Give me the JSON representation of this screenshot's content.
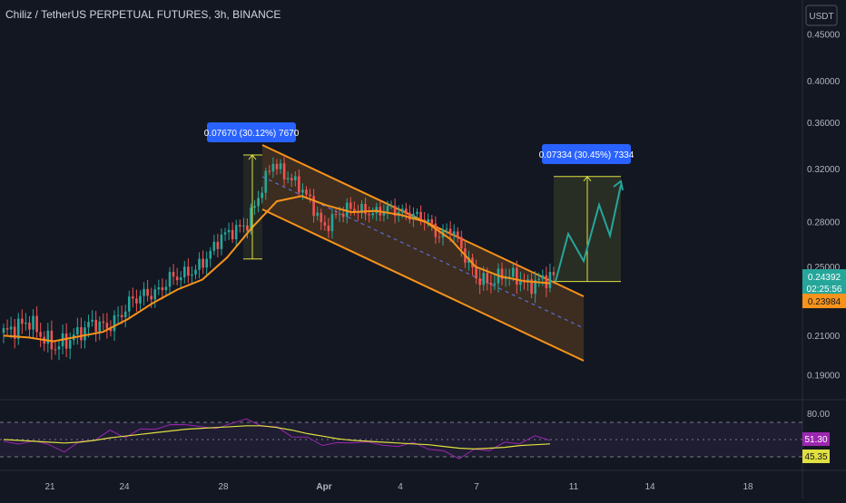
{
  "header": {
    "title": "Chiliz / TetherUS PERPETUAL FUTURES, 3h, BINANCE",
    "currency": "USDT"
  },
  "chart_data": {
    "type": "candlestick",
    "price_axis": {
      "ticks": [
        "0.45000",
        "0.40000",
        "0.36000",
        "0.32000",
        "0.28000",
        "0.25000",
        "0.21000",
        "0.19000"
      ],
      "tick_values": [
        0.45,
        0.4,
        0.36,
        0.32,
        0.28,
        0.25,
        0.21,
        0.19
      ],
      "scale": "log"
    },
    "time_axis": {
      "ticks": [
        "21",
        "24",
        "28",
        "Apr",
        "4",
        "7",
        "11",
        "14",
        "18"
      ]
    },
    "last_price": {
      "value": 0.24392,
      "label": "0.24392",
      "countdown": "02:25:56",
      "color": "#26a69a"
    },
    "ma_price": {
      "value": 0.23984,
      "label": "0.23984",
      "color": "#f7931a"
    },
    "series": [
      {
        "name": "price",
        "role": "candles",
        "up_color": "#26a69a",
        "down_color": "#ef5350",
        "path": [
          {
            "d": "19",
            "p": 0.2115
          },
          {
            "d": "19.5",
            "p": 0.2145
          },
          {
            "d": "20",
            "p": 0.218
          },
          {
            "d": "20.5",
            "p": 0.2095
          },
          {
            "d": "21",
            "p": 0.204
          },
          {
            "d": "21.5",
            "p": 0.2075
          },
          {
            "d": "22",
            "p": 0.212
          },
          {
            "d": "22.5",
            "p": 0.2175
          },
          {
            "d": "23",
            "p": 0.214
          },
          {
            "d": "23.5",
            "p": 0.22
          },
          {
            "d": "24",
            "p": 0.23
          },
          {
            "d": "24.5",
            "p": 0.233
          },
          {
            "d": "25",
            "p": 0.234
          },
          {
            "d": "25.5",
            "p": 0.243
          },
          {
            "d": "26",
            "p": 0.245
          },
          {
            "d": "26.5",
            "p": 0.248
          },
          {
            "d": "27",
            "p": 0.257
          },
          {
            "d": "27.5",
            "p": 0.27
          },
          {
            "d": "28",
            "p": 0.274
          },
          {
            "d": "28.5",
            "p": 0.278
          },
          {
            "d": "29",
            "p": 0.3
          },
          {
            "d": "29.5",
            "p": 0.326
          },
          {
            "d": "30",
            "p": 0.315
          },
          {
            "d": "30.5",
            "p": 0.308
          },
          {
            "d": "31",
            "p": 0.295
          },
          {
            "d": "31.5",
            "p": 0.275
          },
          {
            "d": "Apr 1",
            "p": 0.285
          },
          {
            "d": "1.5",
            "p": 0.29
          },
          {
            "d": "2",
            "p": 0.288
          },
          {
            "d": "2.5",
            "p": 0.286
          },
          {
            "d": "3",
            "p": 0.29
          },
          {
            "d": "3.5",
            "p": 0.287
          },
          {
            "d": "4",
            "p": 0.285
          },
          {
            "d": "4.5",
            "p": 0.282
          },
          {
            "d": "5",
            "p": 0.27
          },
          {
            "d": "5.5",
            "p": 0.276
          },
          {
            "d": "6",
            "p": 0.258
          },
          {
            "d": "6.5",
            "p": 0.243
          },
          {
            "d": "7",
            "p": 0.24
          },
          {
            "d": "7.5",
            "p": 0.245
          },
          {
            "d": "8",
            "p": 0.244
          },
          {
            "d": "8.5",
            "p": 0.238
          },
          {
            "d": "9",
            "p": 0.242
          },
          {
            "d": "9.5",
            "p": 0.2439
          }
        ]
      },
      {
        "name": "moving_average",
        "role": "line",
        "color": "#f7931a",
        "path": [
          {
            "d": "19",
            "p": 0.21
          },
          {
            "d": "20",
            "p": 0.209
          },
          {
            "d": "21",
            "p": 0.207
          },
          {
            "d": "22",
            "p": 0.2095
          },
          {
            "d": "23",
            "p": 0.212
          },
          {
            "d": "24",
            "p": 0.219
          },
          {
            "d": "25",
            "p": 0.228
          },
          {
            "d": "26",
            "p": 0.236
          },
          {
            "d": "27",
            "p": 0.242
          },
          {
            "d": "28",
            "p": 0.256
          },
          {
            "d": "29",
            "p": 0.276
          },
          {
            "d": "30",
            "p": 0.295
          },
          {
            "d": "31",
            "p": 0.299
          },
          {
            "d": "Apr 1",
            "p": 0.292
          },
          {
            "d": "2",
            "p": 0.287
          },
          {
            "d": "3",
            "p": 0.288
          },
          {
            "d": "4",
            "p": 0.285
          },
          {
            "d": "5",
            "p": 0.28
          },
          {
            "d": "6",
            "p": 0.268
          },
          {
            "d": "7",
            "p": 0.25
          },
          {
            "d": "8",
            "p": 0.244
          },
          {
            "d": "9",
            "p": 0.241
          },
          {
            "d": "9.5",
            "p": 0.2398
          }
        ]
      }
    ],
    "annotations": [
      {
        "kind": "measure",
        "label": "0.07670 (30.12%) 7670",
        "from": 0.255,
        "to": 0.3317
      },
      {
        "kind": "projection",
        "label": "0.07334 (30.45%) 7334",
        "from": 0.2408,
        "to": 0.3141
      },
      {
        "kind": "channel",
        "description": "descending parallel channel",
        "color": "#f7931a"
      }
    ],
    "rsi": {
      "levels": [
        "80.00"
      ],
      "upper": 70,
      "lower": 30,
      "rsi_value": {
        "label": "51.30",
        "color": "#9c27b0"
      },
      "ma_value": {
        "label": "45.35",
        "color": "#e0e040"
      },
      "values": [
        48,
        44,
        50,
        42,
        38,
        45,
        52,
        58,
        55,
        60,
        64,
        66,
        68,
        65,
        62,
        70,
        72,
        68,
        62,
        56,
        50,
        46,
        44,
        48,
        46,
        44,
        42,
        46,
        40,
        35,
        30,
        36,
        40,
        44,
        48,
        52,
        51
      ],
      "ma": [
        50,
        49,
        48,
        47,
        46,
        47,
        49,
        52,
        54,
        56,
        58,
        60,
        62,
        63,
        64,
        65,
        66,
        66,
        64,
        61,
        57,
        54,
        51,
        49,
        48,
        47,
        46,
        45,
        44,
        42,
        40,
        39,
        40,
        41,
        43,
        44,
        45
      ]
    },
    "ylim": [
      0.185,
      0.47
    ]
  }
}
